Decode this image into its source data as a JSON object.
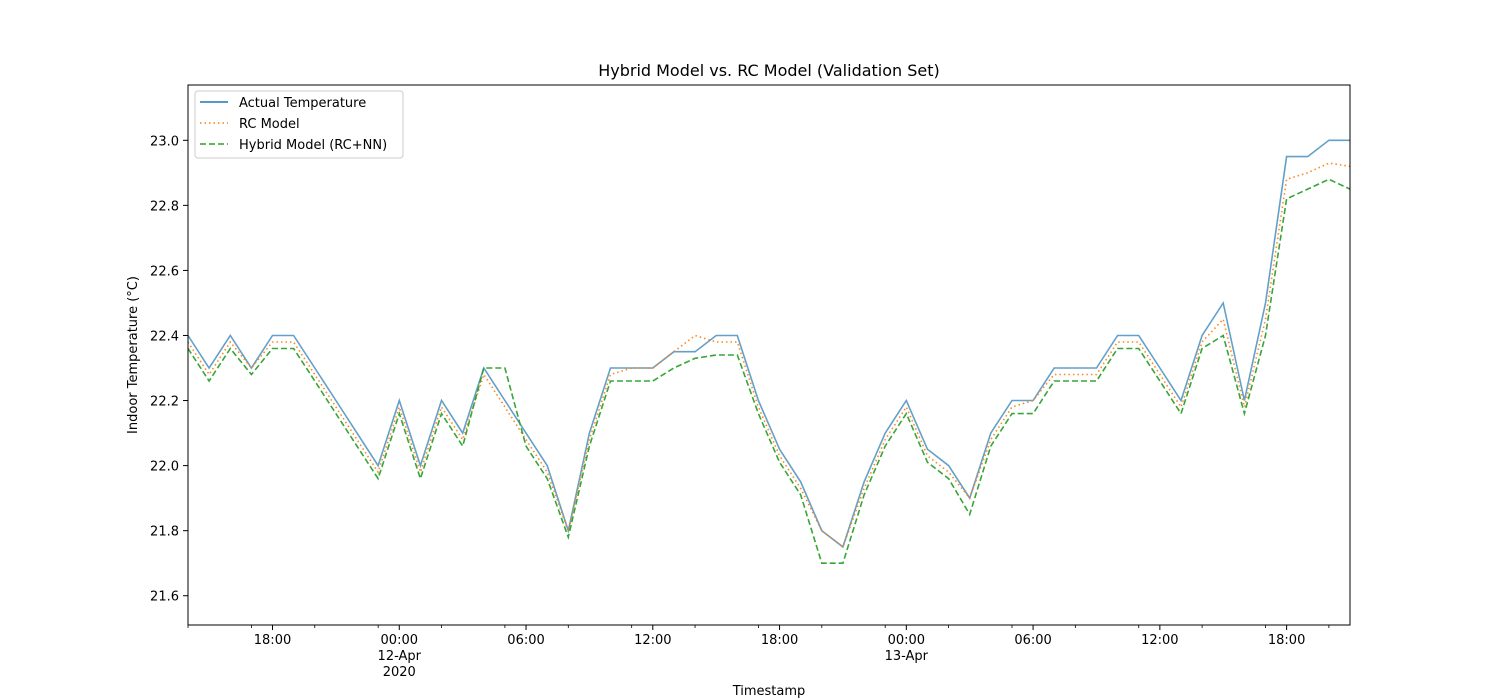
{
  "chart_data": {
    "type": "line",
    "title": "Hybrid Model vs. RC Model (Validation Set)",
    "xlabel": "Timestamp",
    "ylabel": "Indoor Temperature (°C)",
    "xlim": [
      "2020-04-11 14:00",
      "2020-04-13 21:00"
    ],
    "ylim": [
      21.51,
      23.17
    ],
    "grid": false,
    "legend_position": "top-left",
    "x_ticks": [
      {
        "value": "2020-04-11 18:00",
        "lines": [
          "18:00"
        ]
      },
      {
        "value": "2020-04-12 00:00",
        "lines": [
          "00:00",
          "12-Apr",
          "2020"
        ]
      },
      {
        "value": "2020-04-12 06:00",
        "lines": [
          "06:00"
        ]
      },
      {
        "value": "2020-04-12 12:00",
        "lines": [
          "12:00"
        ]
      },
      {
        "value": "2020-04-12 18:00",
        "lines": [
          "18:00"
        ]
      },
      {
        "value": "2020-04-13 00:00",
        "lines": [
          "00:00",
          "13-Apr"
        ]
      },
      {
        "value": "2020-04-13 06:00",
        "lines": [
          "06:00"
        ]
      },
      {
        "value": "2020-04-13 12:00",
        "lines": [
          "12:00"
        ]
      },
      {
        "value": "2020-04-13 18:00",
        "lines": [
          "18:00"
        ]
      }
    ],
    "y_ticks": [
      {
        "value": 21.6,
        "label": "21.6"
      },
      {
        "value": 21.8,
        "label": "21.8"
      },
      {
        "value": 22.0,
        "label": "22.0"
      },
      {
        "value": 22.2,
        "label": "22.2"
      },
      {
        "value": 22.4,
        "label": "22.4"
      },
      {
        "value": 22.6,
        "label": "22.6"
      },
      {
        "value": 22.8,
        "label": "22.8"
      },
      {
        "value": 23.0,
        "label": "23.0"
      }
    ],
    "x": [
      "2020-04-11 14:00",
      "2020-04-11 15:00",
      "2020-04-11 16:00",
      "2020-04-11 17:00",
      "2020-04-11 18:00",
      "2020-04-11 19:00",
      "2020-04-11 20:00",
      "2020-04-11 21:00",
      "2020-04-11 22:00",
      "2020-04-11 23:00",
      "2020-04-12 00:00",
      "2020-04-12 01:00",
      "2020-04-12 02:00",
      "2020-04-12 03:00",
      "2020-04-12 04:00",
      "2020-04-12 05:00",
      "2020-04-12 06:00",
      "2020-04-12 07:00",
      "2020-04-12 08:00",
      "2020-04-12 09:00",
      "2020-04-12 10:00",
      "2020-04-12 11:00",
      "2020-04-12 12:00",
      "2020-04-12 13:00",
      "2020-04-12 14:00",
      "2020-04-12 15:00",
      "2020-04-12 16:00",
      "2020-04-12 17:00",
      "2020-04-12 18:00",
      "2020-04-12 19:00",
      "2020-04-12 20:00",
      "2020-04-12 21:00",
      "2020-04-12 22:00",
      "2020-04-12 23:00",
      "2020-04-13 00:00",
      "2020-04-13 01:00",
      "2020-04-13 02:00",
      "2020-04-13 03:00",
      "2020-04-13 04:00",
      "2020-04-13 05:00",
      "2020-04-13 06:00",
      "2020-04-13 07:00",
      "2020-04-13 08:00",
      "2020-04-13 09:00",
      "2020-04-13 10:00",
      "2020-04-13 11:00",
      "2020-04-13 12:00",
      "2020-04-13 13:00",
      "2020-04-13 14:00",
      "2020-04-13 15:00",
      "2020-04-13 16:00",
      "2020-04-13 17:00",
      "2020-04-13 18:00",
      "2020-04-13 19:00",
      "2020-04-13 20:00",
      "2020-04-13 21:00"
    ],
    "series": [
      {
        "name": "Actual Temperature",
        "color": "#1f77b4",
        "style": "solid",
        "values": [
          22.4,
          22.3,
          22.4,
          22.3,
          22.4,
          22.4,
          22.3,
          22.2,
          22.1,
          22.0,
          22.2,
          22.0,
          22.2,
          22.1,
          22.3,
          22.2,
          22.1,
          22.0,
          21.8,
          22.1,
          22.3,
          22.3,
          22.3,
          22.35,
          22.35,
          22.4,
          22.4,
          22.2,
          22.05,
          21.95,
          21.8,
          21.75,
          21.95,
          22.1,
          22.2,
          22.05,
          22.0,
          21.9,
          22.1,
          22.2,
          22.2,
          22.3,
          22.3,
          22.3,
          22.4,
          22.4,
          22.3,
          22.2,
          22.4,
          22.5,
          22.2,
          22.5,
          22.95,
          22.95,
          23.0,
          23.0
        ]
      },
      {
        "name": "RC Model",
        "color": "#ff7f0e",
        "style": "dotted",
        "values": [
          22.38,
          22.28,
          22.38,
          22.3,
          22.38,
          22.38,
          22.28,
          22.18,
          22.08,
          21.98,
          22.18,
          21.98,
          22.18,
          22.08,
          22.28,
          22.18,
          22.08,
          21.98,
          21.8,
          22.08,
          22.28,
          22.3,
          22.3,
          22.35,
          22.4,
          22.38,
          22.38,
          22.18,
          22.03,
          21.93,
          21.8,
          21.75,
          21.93,
          22.08,
          22.18,
          22.03,
          21.98,
          21.9,
          22.08,
          22.18,
          22.2,
          22.28,
          22.28,
          22.28,
          22.38,
          22.38,
          22.28,
          22.18,
          22.38,
          22.45,
          22.18,
          22.45,
          22.88,
          22.9,
          22.93,
          22.92
        ]
      },
      {
        "name": "Hybrid Model (RC+NN)",
        "color": "#2ca02c",
        "style": "dashed",
        "values": [
          22.36,
          22.26,
          22.36,
          22.28,
          22.36,
          22.36,
          22.26,
          22.16,
          22.06,
          21.96,
          22.16,
          21.96,
          22.16,
          22.06,
          22.3,
          22.3,
          22.06,
          21.96,
          21.78,
          22.06,
          22.26,
          22.26,
          22.26,
          22.3,
          22.33,
          22.34,
          22.34,
          22.16,
          22.01,
          21.91,
          21.7,
          21.7,
          21.91,
          22.06,
          22.16,
          22.01,
          21.96,
          21.85,
          22.06,
          22.16,
          22.16,
          22.26,
          22.26,
          22.26,
          22.36,
          22.36,
          22.26,
          22.16,
          22.36,
          22.4,
          22.16,
          22.4,
          22.82,
          22.85,
          22.88,
          22.85
        ]
      }
    ]
  }
}
